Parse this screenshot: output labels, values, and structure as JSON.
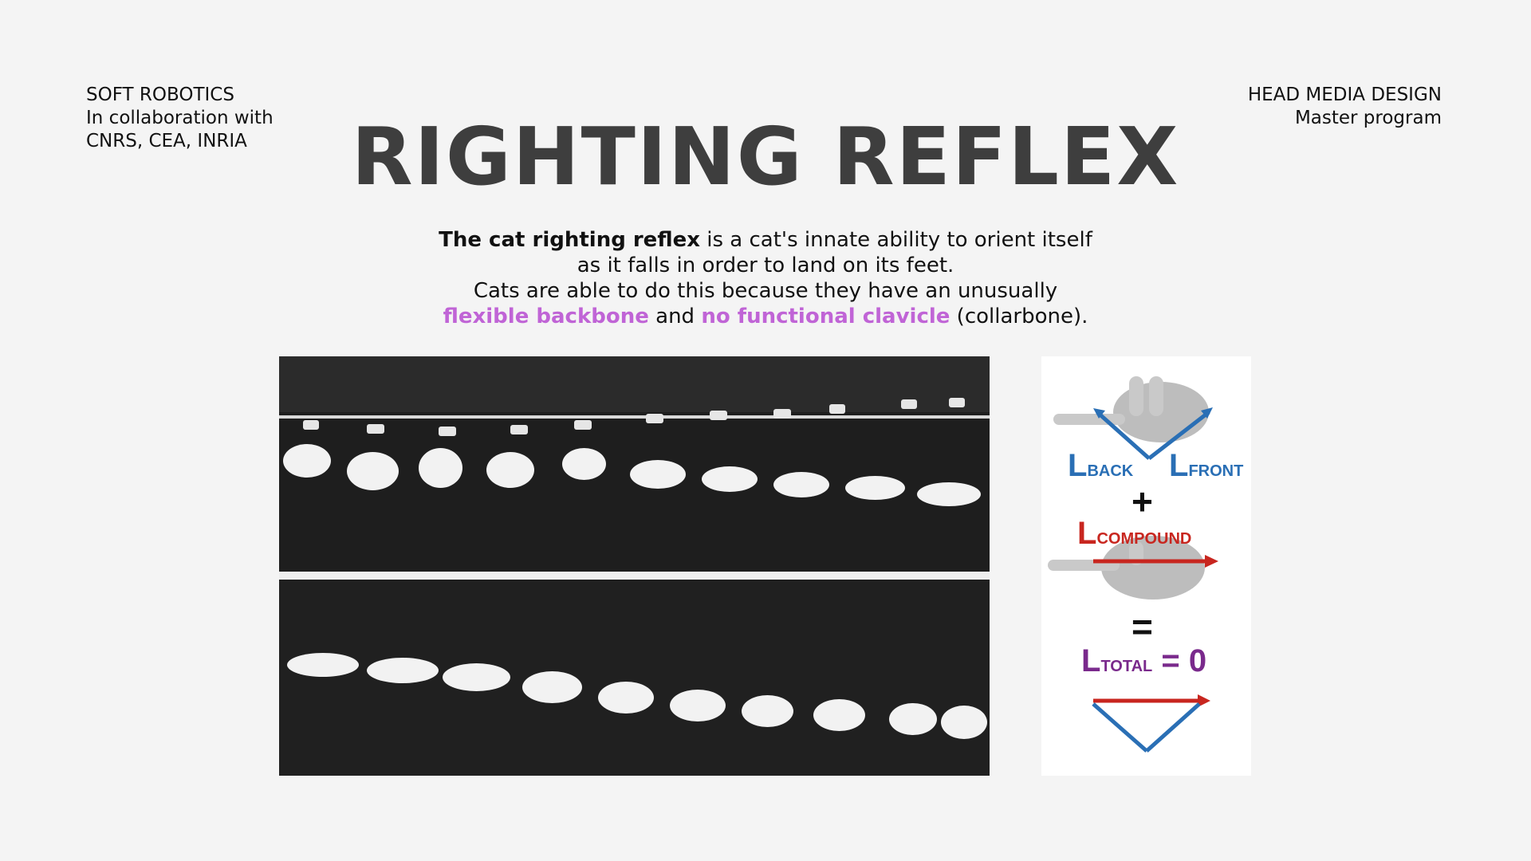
{
  "header": {
    "left_line1": "SOFT ROBOTICS",
    "left_line2": "In collaboration with",
    "left_line3": "CNRS, CEA, INRIA",
    "right_line1": "HEAD MEDIA DESIGN",
    "right_line2": "Master program"
  },
  "title": "RIGHTING REFLEX",
  "description": {
    "bold_lead": "The cat righting reflex",
    "line1_rest": " is a cat's innate ability to orient itself",
    "line2": "as it falls in order to land on its feet.",
    "line3": "Cats are able to do this because they have an unusually",
    "highlight1": "flexible backbone",
    "connector": " and ",
    "highlight2": "no functional clavicle",
    "tail": " (collarbone)."
  },
  "diagram": {
    "back_L": "L",
    "back_sub": "BACK",
    "front_L": "L",
    "front_sub": "FRONT",
    "plus": "+",
    "compound_L": "L",
    "compound_sub": "COMPOUND",
    "equals": "=",
    "total_L": "L",
    "total_sub": "TOTAL",
    "total_value": " = 0",
    "colors": {
      "blue": "#2a6fb5",
      "red": "#c8261f",
      "purple": "#7a2a8c"
    }
  },
  "colors": {
    "highlight": "#c064d6",
    "title": "#3e3e3e",
    "background": "#f4f4f4"
  }
}
